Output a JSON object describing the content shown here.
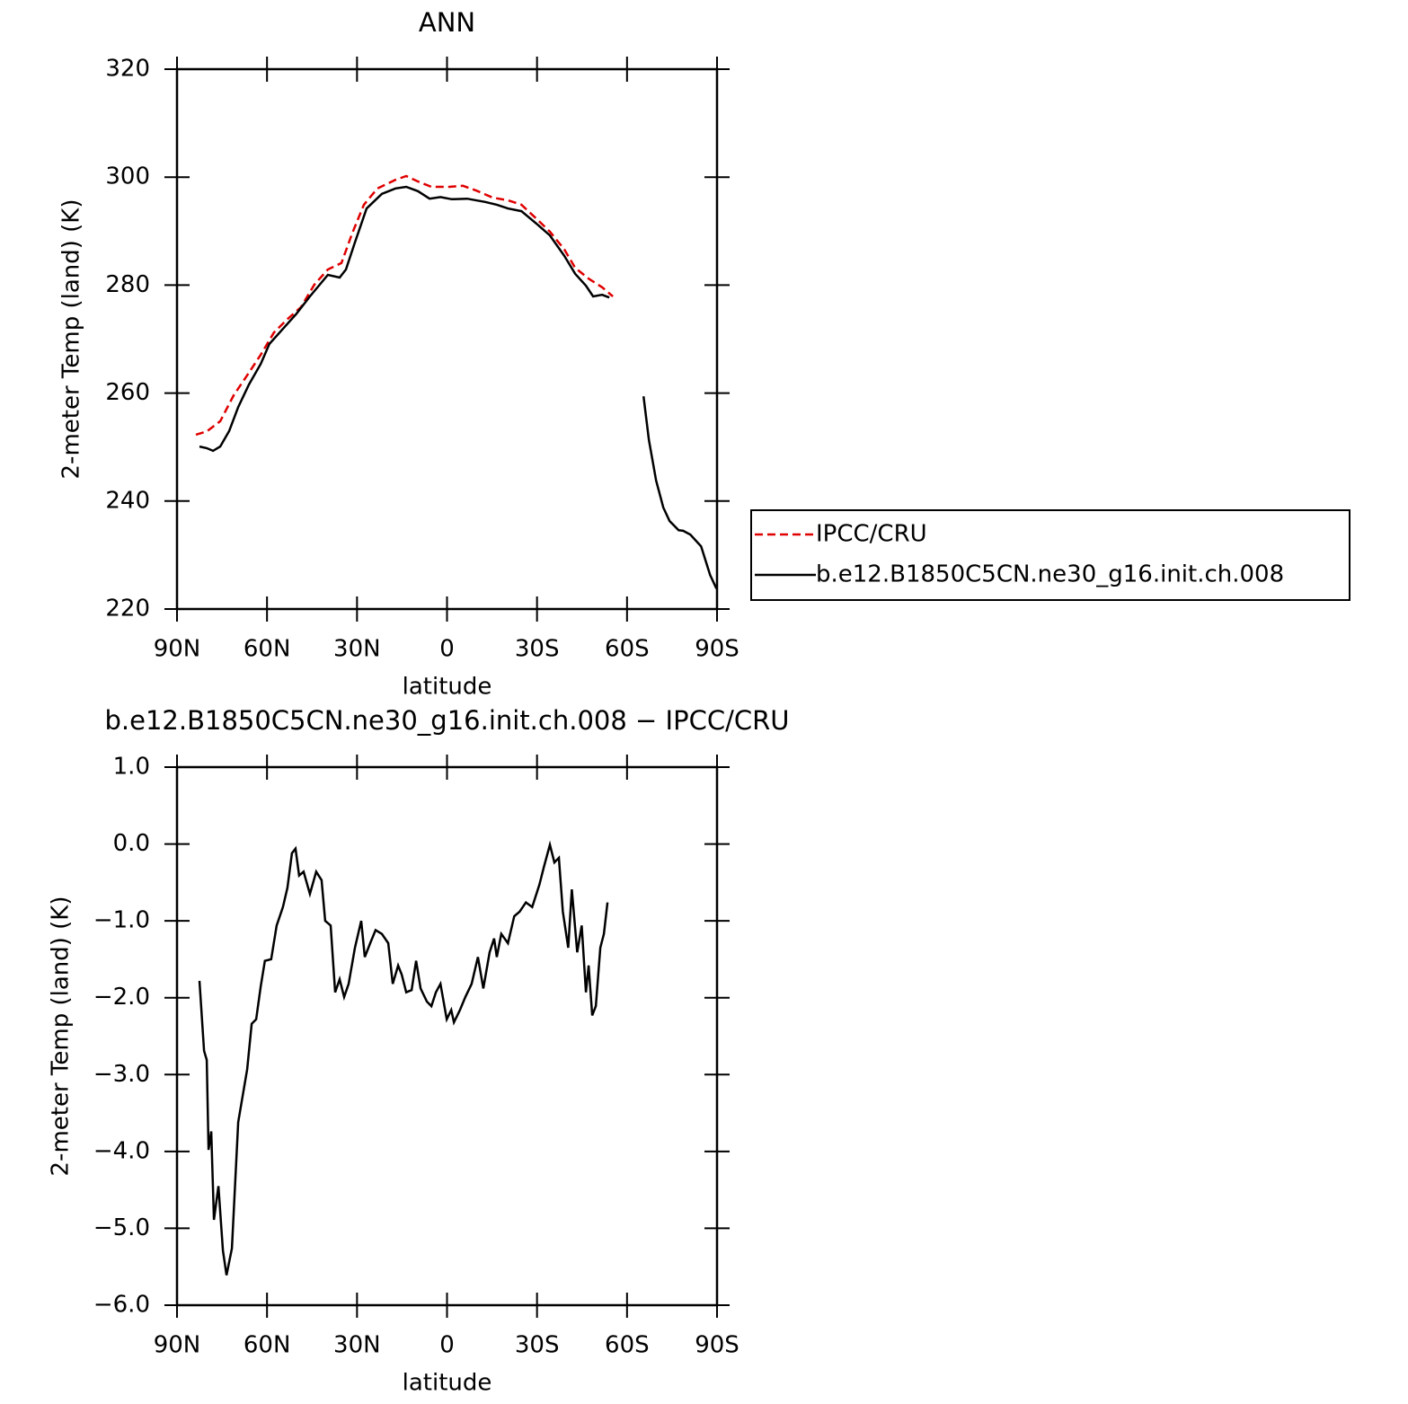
{
  "chart_data": [
    {
      "type": "line",
      "title": "ANN",
      "x_label": "latitude",
      "y_label": "2-meter Temp (land) (K)",
      "xlim": [
        90,
        -90
      ],
      "ylim": [
        220,
        320
      ],
      "xticks": [
        {
          "value": 90,
          "label": "90N"
        },
        {
          "value": 60,
          "label": "60N"
        },
        {
          "value": 30,
          "label": "30N"
        },
        0,
        {
          "value": -30,
          "label": "30S"
        },
        {
          "value": -60,
          "label": "60S"
        },
        {
          "value": -90,
          "label": "90S"
        }
      ],
      "yticks": [
        220,
        240,
        260,
        280,
        300,
        320
      ],
      "legend": "right",
      "series": [
        {
          "name": "IPCC/CRU",
          "color": "#e00000",
          "dashed": true,
          "x": [
            83.7,
            80.1,
            75.6,
            71.1,
            66.6,
            62.1,
            57.7,
            53.2,
            48.7,
            44.2,
            39.7,
            35.2,
            31.6,
            27.7,
            23.2,
            17.2,
            13.6,
            9.7,
            5.2,
            -0.8,
            -5.3,
            -9.8,
            -15.2,
            -20.3,
            -24.8,
            -30.2,
            -34.3,
            -39.1,
            -42.7,
            -47.2,
            -51.7,
            -55.3
          ],
          "values": [
            252.3,
            252.9,
            254.8,
            259.6,
            263.3,
            267.1,
            271.2,
            273.7,
            275.9,
            280.1,
            282.9,
            284.1,
            289.6,
            294.9,
            297.9,
            299.5,
            300.2,
            299.2,
            298.2,
            298.2,
            298.4,
            297.5,
            296.2,
            295.7,
            294.9,
            292.1,
            289.9,
            286.6,
            283.2,
            281.2,
            279.6,
            277.9
          ]
        },
        {
          "name": "b.e12.B1850C5CN.ne30_g16.init.ch.008",
          "color": "#000000",
          "dashed": false,
          "x": [
            82.5,
            80.1,
            78,
            75.6,
            72.6,
            69.6,
            66,
            62.1,
            59.2,
            54.7,
            50.2,
            45.7,
            42.7,
            39.7,
            35.8,
            33.7,
            30.7,
            26.8,
            21.7,
            17.2,
            13.6,
            9.7,
            5.8,
            2.2,
            -1.6,
            -6.7,
            -12.7,
            -16.6,
            -20.3,
            -24.8,
            -30.2,
            -34.3,
            -39.1,
            -42.7,
            -46.3,
            -48.7,
            -51.7,
            -54.1,
            -60,
            -65.5,
            -67.3,
            -69.7,
            -72.1,
            -74.2,
            -77.2,
            -78.7,
            -81.1,
            -84.7,
            -87.7,
            -89.8
          ],
          "values": [
            250.1,
            249.8,
            249.3,
            250.1,
            253,
            257.4,
            261.6,
            265.4,
            269.1,
            271.9,
            274.7,
            277.9,
            279.9,
            281.9,
            281.4,
            282.9,
            287.9,
            294.2,
            296.9,
            297.9,
            298.2,
            297.4,
            296,
            296.3,
            295.9,
            296,
            295.4,
            294.9,
            294.2,
            293.7,
            291.2,
            289.2,
            285.4,
            282.1,
            279.9,
            277.9,
            278.2,
            277.7,
            null,
            259.4,
            251.3,
            243.8,
            238.8,
            236.3,
            234.6,
            234.5,
            233.8,
            231.6,
            226.3,
            223.8
          ]
        }
      ]
    },
    {
      "type": "line",
      "title": "b.e12.B1850C5CN.ne30_g16.init.ch.008 − IPCC/CRU",
      "x_label": "latitude",
      "y_label": "2-meter Temp (land) (K)",
      "xlim": [
        90,
        -90
      ],
      "ylim": [
        -6,
        1
      ],
      "xticks": [
        {
          "value": 90,
          "label": "90N"
        },
        {
          "value": 60,
          "label": "60N"
        },
        {
          "value": 30,
          "label": "30N"
        },
        0,
        {
          "value": -30,
          "label": "30S"
        },
        {
          "value": -60,
          "label": "60S"
        },
        {
          "value": -90,
          "label": "90S"
        }
      ],
      "yticks": [
        {
          "value": -6,
          "label": "−6.0"
        },
        {
          "value": -5,
          "label": "−5.0"
        },
        {
          "value": -4,
          "label": "−4.0"
        },
        {
          "value": -3,
          "label": "−3.0"
        },
        {
          "value": -2,
          "label": "−2.0"
        },
        {
          "value": -1,
          "label": "−1.0"
        },
        {
          "value": 0,
          "label": "0.0"
        },
        {
          "value": 1,
          "label": "1.0"
        }
      ],
      "series": [
        {
          "color": "#000000",
          "dashed": false,
          "x": [
            82.5,
            81,
            80.1,
            79.5,
            78.6,
            77.7,
            76.2,
            74.7,
            73.5,
            71.7,
            69.6,
            66.6,
            65.1,
            63.6,
            62.1,
            60.7,
            58.6,
            56.8,
            54.7,
            53.2,
            51.7,
            50.5,
            49.3,
            47.8,
            45.7,
            43.6,
            41.8,
            40.6,
            38.8,
            37.3,
            35.8,
            34.3,
            32.8,
            30.7,
            28.6,
            27.4,
            25.6,
            23.8,
            21.7,
            19.6,
            18.1,
            16.3,
            15.1,
            13.6,
            11.8,
            10.3,
            8.8,
            6.7,
            5.2,
            3.7,
            2.2,
            0.1,
            -1.4,
            -2.3,
            -4.3,
            -6.1,
            -8.2,
            -10.3,
            -12.1,
            -14.2,
            -15.7,
            -16.6,
            -18.1,
            -20.3,
            -22.4,
            -24.2,
            -26.3,
            -28.4,
            -30.8,
            -32.3,
            -34.3,
            -35.8,
            -37.3,
            -38.6,
            -40.4,
            -41.6,
            -43.4,
            -44.9,
            -46.3,
            -47.2,
            -48.4,
            -49.6,
            -51.1,
            -52.3,
            -53.5
          ],
          "values": [
            -1.78,
            -2.69,
            -2.81,
            -3.98,
            -3.74,
            -4.89,
            -4.45,
            -5.29,
            -5.61,
            -5.26,
            -3.62,
            -2.93,
            -2.34,
            -2.28,
            -1.85,
            -1.52,
            -1.5,
            -1.06,
            -0.82,
            -0.57,
            -0.12,
            -0.06,
            -0.41,
            -0.36,
            -0.65,
            -0.36,
            -0.47,
            -1.0,
            -1.06,
            -1.93,
            -1.76,
            -1.99,
            -1.82,
            -1.35,
            -1.0,
            -1.47,
            -1.29,
            -1.12,
            -1.17,
            -1.29,
            -1.82,
            -1.58,
            -1.7,
            -1.93,
            -1.9,
            -1.52,
            -1.88,
            -2.05,
            -2.11,
            -1.93,
            -1.82,
            -2.28,
            -2.16,
            -2.32,
            -2.16,
            -1.99,
            -1.82,
            -1.47,
            -1.88,
            -1.41,
            -1.23,
            -1.47,
            -1.17,
            -1.29,
            -0.94,
            -0.88,
            -0.76,
            -0.82,
            -0.53,
            -0.3,
            -0.01,
            -0.24,
            -0.18,
            -0.88,
            -1.35,
            -0.59,
            -1.41,
            -1.06,
            -1.93,
            -1.58,
            -2.23,
            -2.11,
            -1.35,
            -1.17,
            -0.76
          ]
        }
      ]
    }
  ]
}
